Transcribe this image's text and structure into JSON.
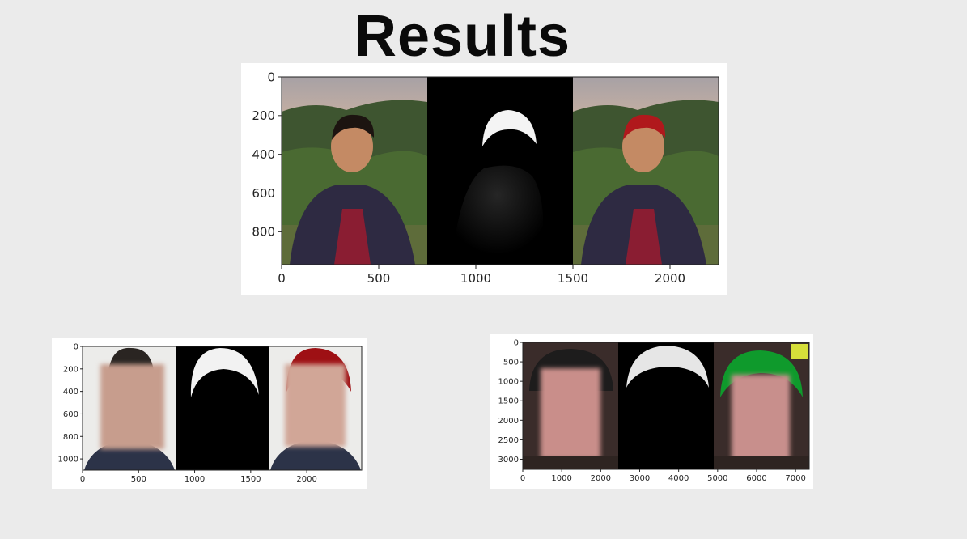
{
  "slide": {
    "title": "Results"
  },
  "figures": [
    {
      "name": "figure-top",
      "panels": [
        "original-photo",
        "hair-mask",
        "recolored-red"
      ],
      "recolor": "#b0181c"
    },
    {
      "name": "figure-bottom-left",
      "panels": [
        "original-photo-blurred",
        "hair-mask",
        "recolored-red-blurred"
      ],
      "recolor": "#9e1014"
    },
    {
      "name": "figure-bottom-right",
      "panels": [
        "original-photo-blurred",
        "hair-mask",
        "recolored-green-blurred"
      ],
      "recolor": "#0f9a2c"
    }
  ],
  "chart_data": [
    {
      "type": "image",
      "xlim": [
        0,
        2250
      ],
      "ylim": [
        970,
        0
      ],
      "xticks": [
        0,
        500,
        1000,
        1500,
        2000
      ],
      "yticks": [
        0,
        200,
        400,
        600,
        800
      ]
    },
    {
      "type": "image",
      "xlim": [
        0,
        2490
      ],
      "ylim": [
        1100,
        0
      ],
      "xticks": [
        0,
        500,
        1000,
        1500,
        2000
      ],
      "yticks": [
        0,
        200,
        400,
        600,
        800,
        1000
      ]
    },
    {
      "type": "image",
      "xlim": [
        0,
        7350
      ],
      "ylim": [
        3260,
        0
      ],
      "xticks": [
        0,
        1000,
        2000,
        3000,
        4000,
        5000,
        6000,
        7000
      ],
      "yticks": [
        0,
        500,
        1000,
        1500,
        2000,
        2500,
        3000
      ]
    }
  ]
}
